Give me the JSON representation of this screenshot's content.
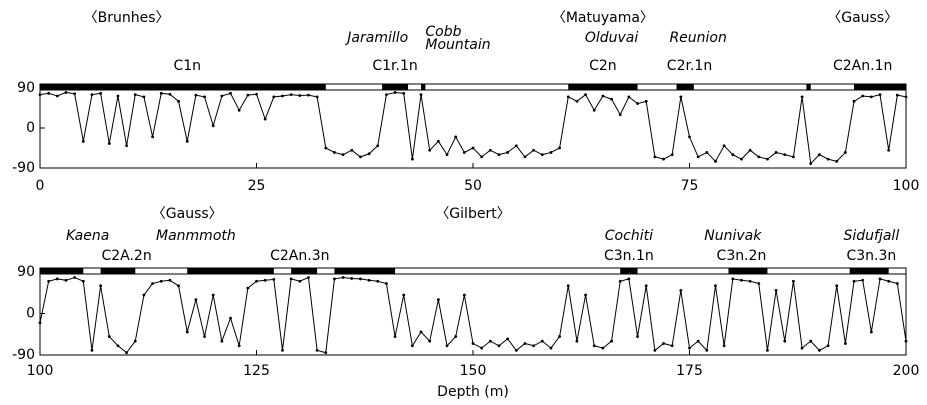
{
  "chart_data": [
    {
      "type": "line",
      "xlim": [
        0,
        100
      ],
      "ylim": [
        -90,
        90
      ],
      "xticks": [
        0,
        25,
        50,
        75,
        100
      ],
      "yticks": [
        -90,
        0,
        90
      ],
      "epochs": [
        "〈Brunhes〉",
        "〈Matuyama〉",
        "〈Gauss〉"
      ],
      "events": [
        "Jaramillo",
        "Cobb Mountain",
        "Olduvai",
        "Reunion"
      ],
      "chrons": [
        "C1n",
        "C1r.1n",
        "C2n",
        "C2r.1n",
        "C2An.1n"
      ],
      "polarity_normal": [
        [
          0,
          33
        ],
        [
          39.5,
          42.5
        ],
        [
          44,
          44.5
        ],
        [
          61,
          69
        ],
        [
          73.5,
          75.5
        ],
        [
          88.5,
          89
        ],
        [
          94,
          100
        ]
      ],
      "color": "#000000",
      "x": [
        0,
        1,
        2,
        3,
        4,
        5,
        6,
        7,
        8,
        9,
        10,
        11,
        12,
        13,
        14,
        15,
        16,
        17,
        18,
        19,
        20,
        21,
        22,
        23,
        24,
        25,
        26,
        27,
        28,
        29,
        30,
        31,
        32,
        33,
        34,
        35,
        36,
        37,
        38,
        39,
        40,
        41,
        42,
        43,
        44,
        45,
        46,
        47,
        48,
        49,
        50,
        51,
        52,
        53,
        54,
        55,
        56,
        57,
        58,
        59,
        60,
        61,
        62,
        63,
        64,
        65,
        66,
        67,
        68,
        69,
        70,
        71,
        72,
        73,
        74,
        75,
        76,
        77,
        78,
        79,
        80,
        81,
        82,
        83,
        84,
        85,
        86,
        87,
        88,
        89,
        90,
        91,
        92,
        93,
        94,
        95,
        96,
        97,
        98,
        99,
        100
      ],
      "values": [
        75,
        78,
        72,
        80,
        77,
        -30,
        75,
        78,
        -35,
        72,
        -40,
        75,
        70,
        -20,
        78,
        76,
        60,
        -30,
        74,
        70,
        5,
        72,
        78,
        40,
        74,
        76,
        20,
        70,
        72,
        75,
        73,
        74,
        70,
        -45,
        -55,
        -60,
        -50,
        -65,
        -58,
        -40,
        75,
        80,
        78,
        -70,
        75,
        -50,
        -30,
        -60,
        -20,
        -55,
        -45,
        -65,
        -50,
        -60,
        -55,
        -40,
        -65,
        -50,
        -60,
        -55,
        -45,
        70,
        60,
        75,
        40,
        72,
        65,
        30,
        70,
        55,
        60,
        -65,
        -70,
        -60,
        70,
        -20,
        -65,
        -55,
        -75,
        -40,
        -60,
        -70,
        -50,
        -65,
        -70,
        -55,
        -60,
        -65,
        70,
        -80,
        -60,
        -70,
        -75,
        -55,
        60,
        72,
        70,
        75,
        -50,
        74,
        70
      ]
    },
    {
      "type": "line",
      "xlim": [
        100,
        200
      ],
      "ylim": [
        -90,
        90
      ],
      "xticks": [
        100,
        125,
        150,
        175,
        200
      ],
      "yticks": [
        -90,
        0,
        90
      ],
      "xlabel": "Depth (m)",
      "epochs": [
        "〈Gauss〉",
        "〈Gilbert〉"
      ],
      "events": [
        "Kaena",
        "Manmmoth",
        "Cochiti",
        "Nunivak",
        "Sidufjall"
      ],
      "chrons": [
        "C2A.2n",
        "C2An.3n",
        "C3n.1n",
        "C3n.2n",
        "C3n.3n"
      ],
      "polarity_normal": [
        [
          100,
          105
        ],
        [
          107,
          111
        ],
        [
          117,
          127
        ],
        [
          129,
          132
        ],
        [
          134,
          141
        ],
        [
          167,
          169
        ],
        [
          179.5,
          184
        ],
        [
          193.5,
          198
        ]
      ],
      "color": "#000000",
      "x": [
        100,
        101,
        102,
        103,
        104,
        105,
        106,
        107,
        108,
        109,
        110,
        111,
        112,
        113,
        114,
        115,
        116,
        117,
        118,
        119,
        120,
        121,
        122,
        123,
        124,
        125,
        126,
        127,
        128,
        129,
        130,
        131,
        132,
        133,
        134,
        135,
        136,
        137,
        138,
        139,
        140,
        141,
        142,
        143,
        144,
        145,
        146,
        147,
        148,
        149,
        150,
        151,
        152,
        153,
        154,
        155,
        156,
        157,
        158,
        159,
        160,
        161,
        162,
        163,
        164,
        165,
        166,
        167,
        168,
        169,
        170,
        171,
        172,
        173,
        174,
        175,
        176,
        177,
        178,
        179,
        180,
        181,
        182,
        183,
        184,
        185,
        186,
        187,
        188,
        189,
        190,
        191,
        192,
        193,
        194,
        195,
        196,
        197,
        198,
        199,
        200
      ],
      "values": [
        -20,
        70,
        75,
        72,
        78,
        70,
        -80,
        60,
        -50,
        -70,
        -85,
        -60,
        40,
        65,
        70,
        72,
        60,
        -40,
        30,
        -50,
        40,
        -60,
        -10,
        -70,
        55,
        70,
        72,
        74,
        -80,
        75,
        70,
        78,
        -80,
        -85,
        75,
        78,
        76,
        75,
        72,
        70,
        65,
        -50,
        40,
        -70,
        -40,
        -60,
        30,
        -70,
        -50,
        40,
        -65,
        -75,
        -60,
        -70,
        -55,
        -80,
        -65,
        -70,
        -60,
        -75,
        -50,
        60,
        -60,
        40,
        -70,
        -75,
        -60,
        70,
        75,
        -50,
        60,
        -80,
        -65,
        -70,
        50,
        -75,
        -60,
        -80,
        60,
        -70,
        75,
        72,
        70,
        65,
        -80,
        50,
        -60,
        70,
        -75,
        -60,
        -80,
        -70,
        60,
        -65,
        70,
        72,
        -40,
        75,
        70,
        65,
        -60
      ]
    }
  ]
}
